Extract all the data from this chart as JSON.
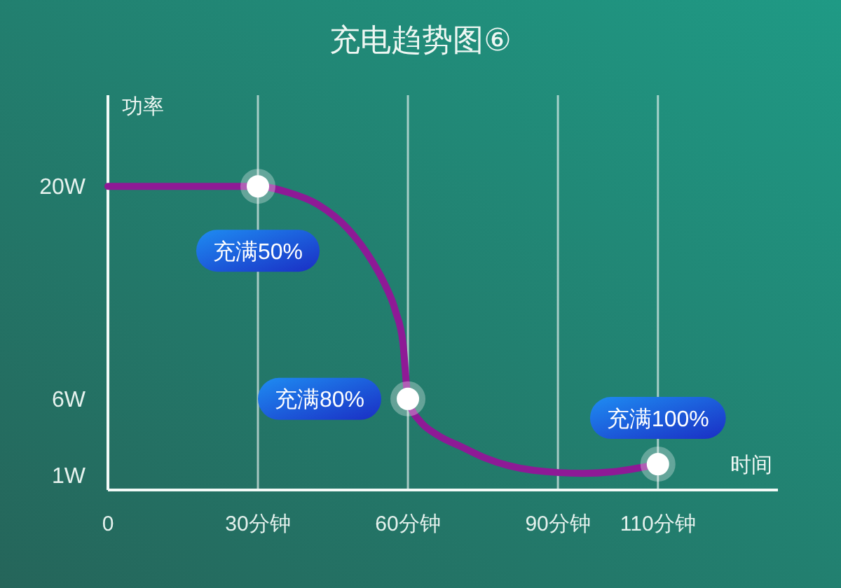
{
  "chart_data": {
    "type": "line",
    "title": "充电趋势图⑥",
    "xlabel": "时间",
    "ylabel": "功率",
    "xlim": [
      0,
      134
    ],
    "ylim": [
      0,
      26
    ],
    "xticks": [
      0,
      {
        "value": 30,
        "label": "30分钟"
      },
      {
        "value": 60,
        "label": "60分钟"
      },
      {
        "value": 90,
        "label": "90分钟"
      },
      {
        "value": 110,
        "label": "110分钟"
      }
    ],
    "yticks": [
      {
        "value": 20,
        "label": "20W"
      },
      {
        "value": 6,
        "label": "6W"
      },
      {
        "value": 1,
        "label": "1W"
      }
    ],
    "grid": "x",
    "series": [
      {
        "color": "#8e1a96",
        "line_style": "solid",
        "x": [
          0,
          30,
          36,
          42,
          48,
          52,
          55,
          57.5,
          59,
          60,
          60.5,
          62.5,
          66,
          71,
          75.5,
          85,
          95,
          101,
          110
        ],
        "values": [
          20,
          20,
          19.6,
          18.8,
          17.2,
          15.5,
          13.8,
          11.8,
          9.7,
          6,
          5.5,
          4.5,
          3.6,
          2.8,
          2.1,
          1.3,
          1.1,
          1.2,
          1.7
        ]
      },
      {
        "type": "scatter",
        "color": "#ffffff",
        "marker": "circle",
        "x": [
          30,
          60,
          110
        ],
        "values": [
          20,
          6,
          1.7
        ]
      }
    ],
    "annotations": [
      {
        "text": "充满50%",
        "x": 30,
        "y": 20
      },
      {
        "text": "充满80%",
        "x": 60,
        "y": 6
      },
      {
        "text": "充满100%",
        "x": 110,
        "y": 1.7
      }
    ]
  }
}
